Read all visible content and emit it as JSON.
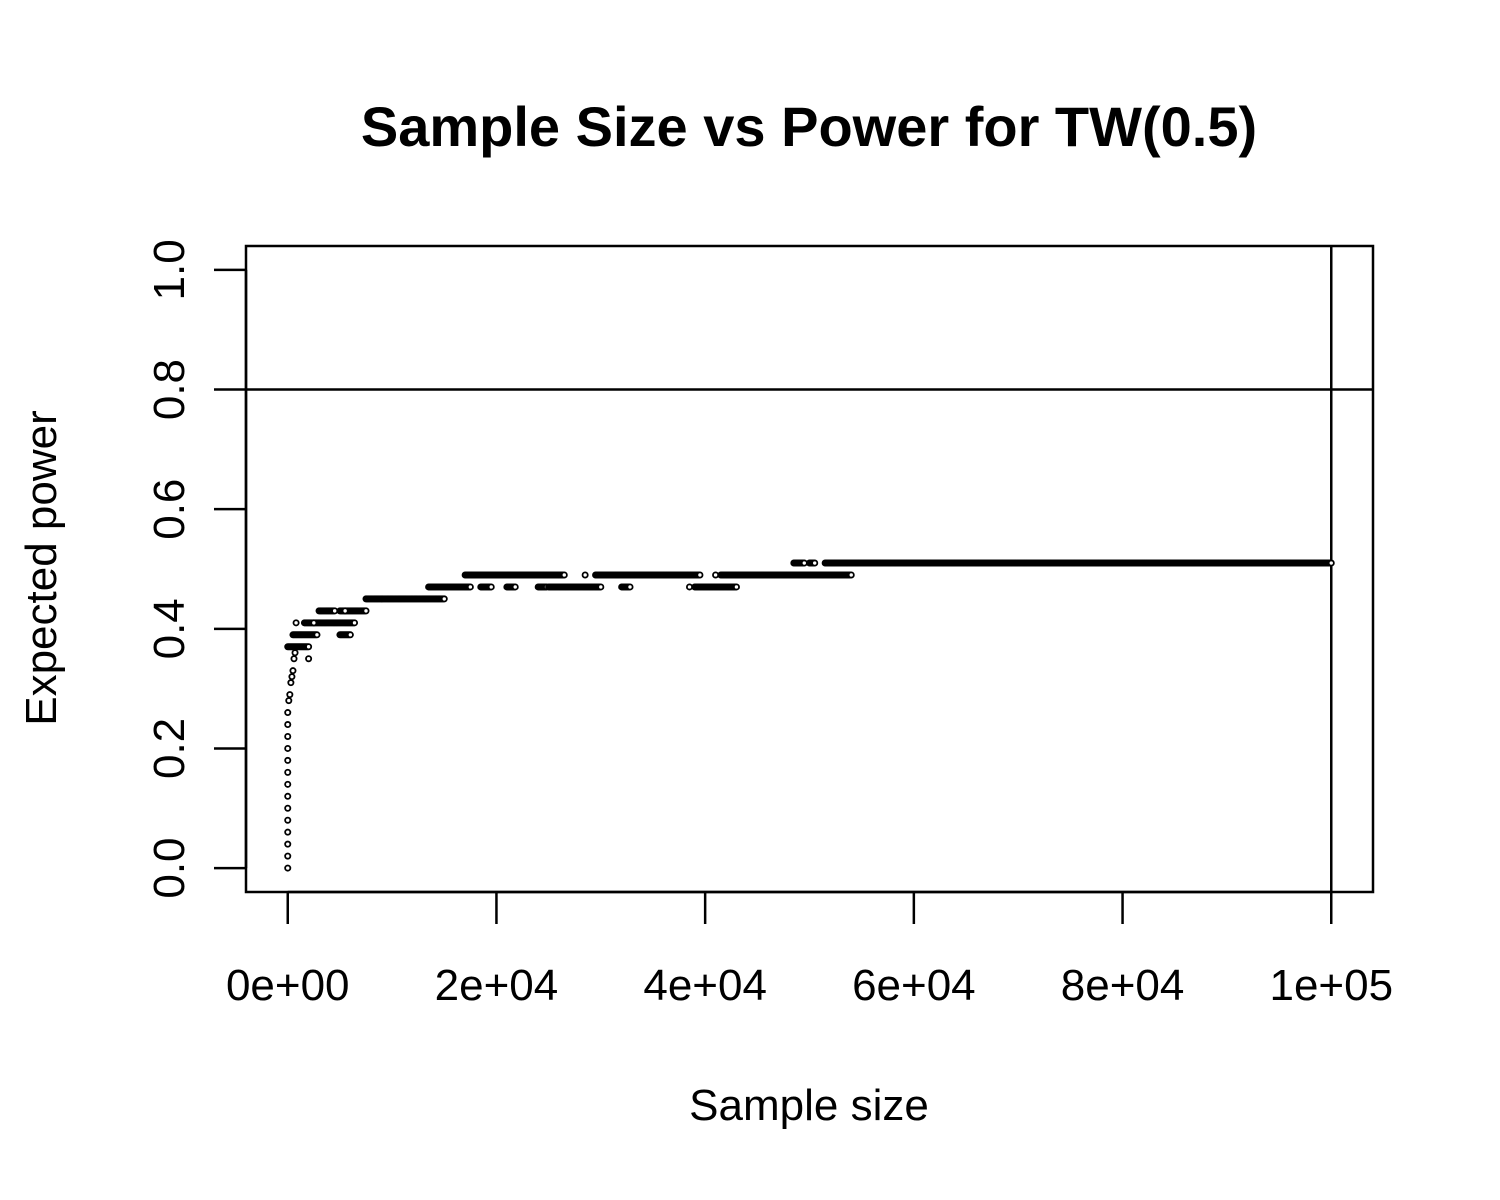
{
  "chart_data": {
    "type": "scatter",
    "title": "Sample Size vs Power for TW(0.5)",
    "xlabel": "Sample size",
    "ylabel": "Expected power",
    "xlim": [
      -4000,
      104000
    ],
    "ylim": [
      -0.04,
      1.04
    ],
    "xticks": [
      0,
      20000,
      40000,
      60000,
      80000,
      100000
    ],
    "xtick_labels": [
      "0e+00",
      "2e+04",
      "4e+04",
      "6e+04",
      "8e+04",
      "1e+05"
    ],
    "yticks": [
      0.0,
      0.2,
      0.4,
      0.6,
      0.8,
      1.0
    ],
    "ytick_labels": [
      "0.0",
      "0.2",
      "0.4",
      "0.6",
      "0.8",
      "1.0"
    ],
    "reference_lines": {
      "h": 0.8,
      "v": 100000
    },
    "marker": "open-circle",
    "grid": false,
    "point_spacing": 100,
    "series": [
      {
        "segments": [
          {
            "x": [
              0,
              2000
            ],
            "y": 0.37
          },
          {
            "x": [
              500,
              2800
            ],
            "y": 0.39
          },
          {
            "x": [
              1600,
              6400
            ],
            "y": 0.41
          },
          {
            "x": [
              3000,
              4500
            ],
            "y": 0.43
          },
          {
            "x": [
              5000,
              7500
            ],
            "y": 0.43
          },
          {
            "x": [
              5000,
              6000
            ],
            "y": 0.39
          },
          {
            "x": [
              7500,
              15000
            ],
            "y": 0.45
          },
          {
            "x": [
              13500,
              17500
            ],
            "y": 0.47
          },
          {
            "x": [
              17000,
              26500
            ],
            "y": 0.49
          },
          {
            "x": [
              18500,
              19500
            ],
            "y": 0.47
          },
          {
            "x": [
              21000,
              21800
            ],
            "y": 0.47
          },
          {
            "x": [
              24000,
              24800
            ],
            "y": 0.47
          },
          {
            "x": [
              25000,
              30000
            ],
            "y": 0.47
          },
          {
            "x": [
              32000,
              32800
            ],
            "y": 0.47
          },
          {
            "x": [
              29500,
              39500
            ],
            "y": 0.49
          },
          {
            "x": [
              39000,
              43000
            ],
            "y": 0.47
          },
          {
            "x": [
              41500,
              54000
            ],
            "y": 0.49
          },
          {
            "x": [
              48500,
              49500
            ],
            "y": 0.51
          },
          {
            "x": [
              50000,
              50500
            ],
            "y": 0.51
          },
          {
            "x": [
              51500,
              100000
            ],
            "y": 0.51
          }
        ],
        "points": [
          [
            0,
            0.0
          ],
          [
            0,
            0.02
          ],
          [
            0,
            0.04
          ],
          [
            0,
            0.06
          ],
          [
            0,
            0.08
          ],
          [
            0,
            0.1
          ],
          [
            0,
            0.12
          ],
          [
            0,
            0.14
          ],
          [
            0,
            0.16
          ],
          [
            0,
            0.18
          ],
          [
            0,
            0.2
          ],
          [
            0,
            0.22
          ],
          [
            0,
            0.24
          ],
          [
            0,
            0.26
          ],
          [
            100,
            0.28
          ],
          [
            200,
            0.29
          ],
          [
            300,
            0.31
          ],
          [
            400,
            0.32
          ],
          [
            500,
            0.33
          ],
          [
            600,
            0.35
          ],
          [
            700,
            0.36
          ],
          [
            800,
            0.41
          ],
          [
            2000,
            0.35
          ],
          [
            2500,
            0.41
          ],
          [
            5500,
            0.43
          ],
          [
            28500,
            0.49
          ],
          [
            41000,
            0.49
          ],
          [
            38500,
            0.47
          ]
        ]
      }
    ]
  }
}
